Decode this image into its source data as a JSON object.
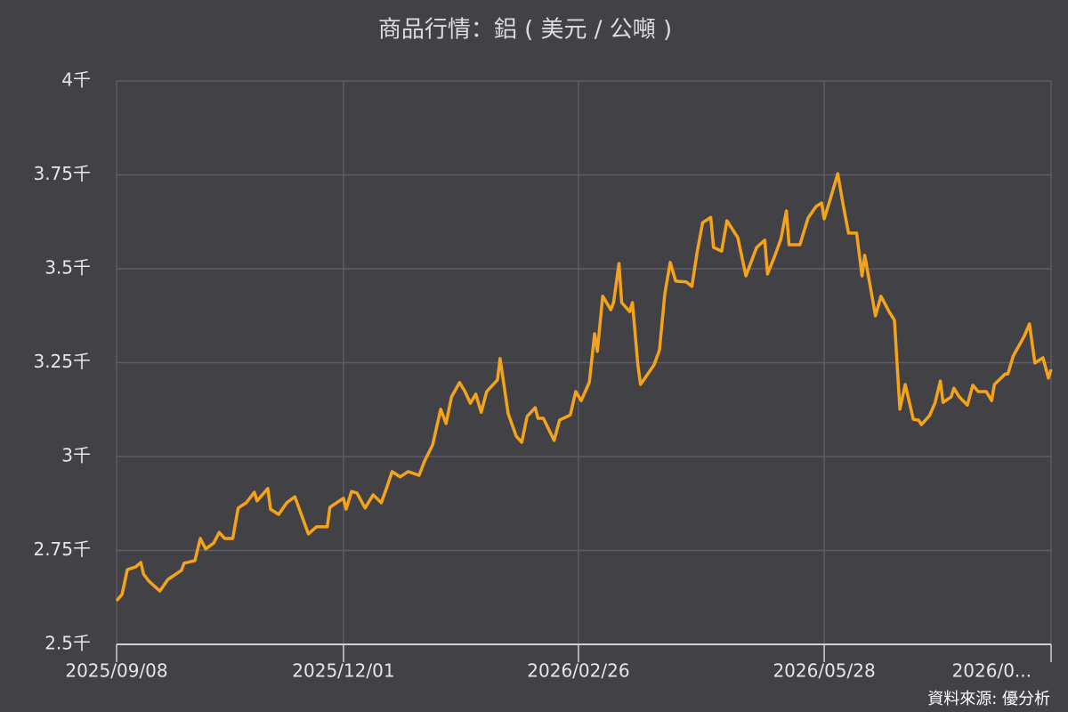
{
  "chart_data": {
    "type": "line",
    "title": "商品行情：鋁 ( 美元 / 公噸 )",
    "source": "資料來源: 優分析",
    "color": "#f5a31a",
    "grid": true,
    "xlim": [
      "2025/09/08",
      "2026/08/20"
    ],
    "xticks": [
      "2025/09/08",
      "2025/12/01",
      "2026/02/26",
      "2026/05/28",
      {
        "value": "2026/08/20",
        "label": "2026/0..."
      }
    ],
    "ylim": [
      2500,
      4000
    ],
    "yticks": [
      {
        "value": 2500,
        "label": "2.5千"
      },
      {
        "value": 2750,
        "label": "2.75千"
      },
      {
        "value": 3000,
        "label": "3千"
      },
      {
        "value": 3250,
        "label": "3.25千"
      },
      {
        "value": 3500,
        "label": "3.5千"
      },
      {
        "value": 3750,
        "label": "3.75千"
      },
      {
        "value": 4000,
        "label": "4千"
      }
    ],
    "x": [
      "2025/09/08",
      "2025/09/10",
      "2025/09/12",
      "2025/09/15",
      "2025/09/17",
      "2025/09/18",
      "2025/09/20",
      "2025/09/24",
      "2025/09/27",
      "2025/10/02",
      "2025/10/03",
      "2025/10/07",
      "2025/10/09",
      "2025/10/11",
      "2025/10/14",
      "2025/10/16",
      "2025/10/18",
      "2025/10/21",
      "2025/10/23",
      "2025/10/26",
      "2025/10/29",
      "2025/10/30",
      "2025/11/03",
      "2025/11/04",
      "2025/11/07",
      "2025/11/10",
      "2025/11/13",
      "2025/11/18",
      "2025/11/21",
      "2025/11/25",
      "2025/11/26",
      "2025/12/01",
      "2025/12/02",
      "2025/12/04",
      "2025/12/06",
      "2025/12/09",
      "2025/12/12",
      "2025/12/15",
      "2025/12/17",
      "2025/12/19",
      "2025/12/22",
      "2025/12/25",
      "2025/12/29",
      "2025/12/31",
      "2026/01/03",
      "2026/01/06",
      "2026/01/08",
      "2026/01/10",
      "2026/01/13",
      "2026/01/15",
      "2026/01/17",
      "2026/01/19",
      "2026/01/21",
      "2026/01/23",
      "2026/01/27",
      "2026/01/28",
      "2026/01/31",
      "2026/02/03",
      "2026/02/05",
      "2026/02/07",
      "2026/02/10",
      "2026/02/11",
      "2026/02/13",
      "2026/02/17",
      "2026/02/19",
      "2026/02/23",
      "2026/02/25",
      "2026/02/27",
      "2026/03/02",
      "2026/03/04",
      "2026/03/05",
      "2026/03/07",
      "2026/03/10",
      "2026/03/11",
      "2026/03/13",
      "2026/03/14",
      "2026/03/17",
      "2026/03/18",
      "2026/03/20",
      "2026/03/21",
      "2026/03/26",
      "2026/03/28",
      "2026/03/30",
      "2026/04/01",
      "2026/04/03",
      "2026/04/07",
      "2026/04/09",
      "2026/04/11",
      "2026/04/13",
      "2026/04/16",
      "2026/04/17",
      "2026/04/20",
      "2026/04/22",
      "2026/04/26",
      "2026/04/29",
      "2026/05/03",
      "2026/05/06",
      "2026/05/07",
      "2026/05/10",
      "2026/05/12",
      "2026/05/14",
      "2026/05/15",
      "2026/05/19",
      "2026/05/22",
      "2026/05/25",
      "2026/05/27",
      "2026/05/28",
      "2026/05/30",
      "2026/06/02",
      "2026/06/04",
      "2026/06/06",
      "2026/06/09",
      "2026/06/11",
      "2026/06/12",
      "2026/06/16",
      "2026/06/18",
      "2026/06/21",
      "2026/06/23",
      "2026/06/25",
      "2026/06/27",
      "2026/06/30",
      "2026/07/02",
      "2026/07/03",
      "2026/07/06",
      "2026/07/08",
      "2026/07/10",
      "2026/07/11",
      "2026/07/14",
      "2026/07/15",
      "2026/07/17",
      "2026/07/20",
      "2026/07/22",
      "2026/07/24",
      "2026/07/27",
      "2026/07/29",
      "2026/07/30",
      "2026/08/03",
      "2026/08/04",
      "2026/08/06",
      "2026/08/10",
      "2026/08/12",
      "2026/08/14",
      "2026/08/17",
      "2026/08/19",
      "2026/08/20"
    ],
    "values": [
      2616,
      2633,
      2699,
      2706,
      2718,
      2687,
      2668,
      2642,
      2673,
      2697,
      2716,
      2723,
      2782,
      2754,
      2770,
      2798,
      2782,
      2782,
      2863,
      2877,
      2905,
      2882,
      2915,
      2860,
      2846,
      2877,
      2893,
      2794,
      2813,
      2813,
      2865,
      2889,
      2860,
      2907,
      2903,
      2863,
      2898,
      2877,
      2917,
      2960,
      2946,
      2960,
      2950,
      2988,
      3031,
      3126,
      3088,
      3159,
      3197,
      3173,
      3142,
      3166,
      3118,
      3173,
      3204,
      3261,
      3114,
      3054,
      3038,
      3107,
      3130,
      3102,
      3102,
      3043,
      3097,
      3111,
      3173,
      3149,
      3197,
      3327,
      3280,
      3427,
      3391,
      3410,
      3514,
      3410,
      3386,
      3410,
      3244,
      3192,
      3244,
      3284,
      3434,
      3517,
      3467,
      3465,
      3453,
      3547,
      3623,
      3637,
      3557,
      3547,
      3628,
      3583,
      3481,
      3557,
      3576,
      3486,
      3540,
      3580,
      3654,
      3564,
      3564,
      3635,
      3666,
      3675,
      3633,
      3680,
      3753,
      3671,
      3595,
      3595,
      3481,
      3536,
      3375,
      3427,
      3386,
      3363,
      3126,
      3192,
      3099,
      3097,
      3085,
      3109,
      3142,
      3201,
      3144,
      3159,
      3182,
      3159,
      3137,
      3190,
      3173,
      3173,
      3149,
      3192,
      3220,
      3220,
      3268,
      3320,
      3353,
      3249,
      3263,
      3209,
      3232
    ]
  }
}
